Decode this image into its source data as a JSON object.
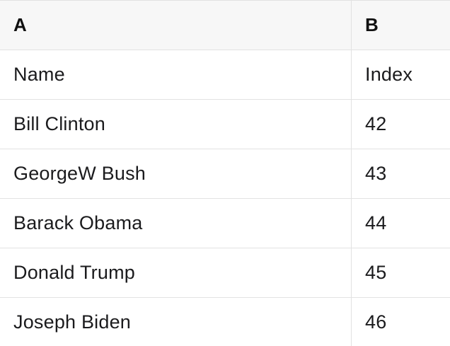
{
  "table": {
    "column_headers": [
      "A",
      "B"
    ],
    "rows": [
      {
        "a": "Name",
        "b": "Index"
      },
      {
        "a": "Bill Clinton",
        "b": "42"
      },
      {
        "a": "GeorgeW Bush",
        "b": "43"
      },
      {
        "a": "Barack Obama",
        "b": "44"
      },
      {
        "a": "Donald Trump",
        "b": "45"
      },
      {
        "a": "Joseph Biden",
        "b": "46"
      }
    ]
  },
  "colors": {
    "header_bg": "#f7f7f7",
    "row_bg": "#ffffff",
    "border": "#e2e2e2",
    "header_text": "#111111",
    "cell_text": "#1b1b1d"
  }
}
